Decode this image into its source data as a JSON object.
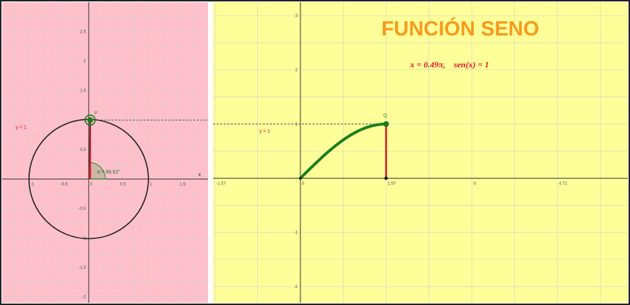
{
  "title": "FUNCIÓN SENO",
  "formula": {
    "x_part": "x = 0.49π,",
    "sen_part": "sen(x) = 1"
  },
  "colors": {
    "left_bg": "#FFC0CB",
    "right_bg": "#FFFF99",
    "title": "#F79A1E",
    "accent_red": "#E8142C",
    "curve_green": "#1A7F1A",
    "point_green": "#1E7A1E",
    "grid": "#CFCFCF"
  },
  "left_view": {
    "y_label": "y = 1",
    "x_axis_label": "x",
    "point_label": "P",
    "angle_label": "α = 88.62°",
    "angle_deg": 88.62,
    "x_ticks": [
      "-1",
      "-0.5",
      "0",
      "0.5",
      "1",
      "1.5"
    ],
    "x_tick_values": [
      -1,
      -0.5,
      0,
      0.5,
      1,
      1.5
    ],
    "y_ticks": [
      "2.5",
      "2",
      "1.5",
      "1",
      "0.5",
      "-0.5",
      "-1",
      "-1.5",
      "-2"
    ],
    "y_tick_values": [
      2.5,
      2,
      1.5,
      1,
      0.5,
      -0.5,
      -1,
      -1.5,
      -2
    ],
    "x_range": [
      -1.45,
      2.0
    ],
    "y_range": [
      -2.1,
      3.0
    ]
  },
  "right_view": {
    "y_label": "y = 1",
    "point_label": "Q",
    "x_ticks": [
      "-1.57",
      "0",
      "1.57",
      "π",
      "4.71"
    ],
    "x_tick_values": [
      -1.57,
      0,
      1.57,
      3.1416,
      4.71
    ],
    "y_ticks": [
      "3",
      "2",
      "1",
      "-1",
      "-2"
    ],
    "y_tick_values": [
      3,
      2,
      1,
      -1,
      -2
    ],
    "x_range": [
      -1.6,
      6.0
    ],
    "y_range": [
      -2.3,
      3.25
    ],
    "curve_end_x": 1.57
  }
}
